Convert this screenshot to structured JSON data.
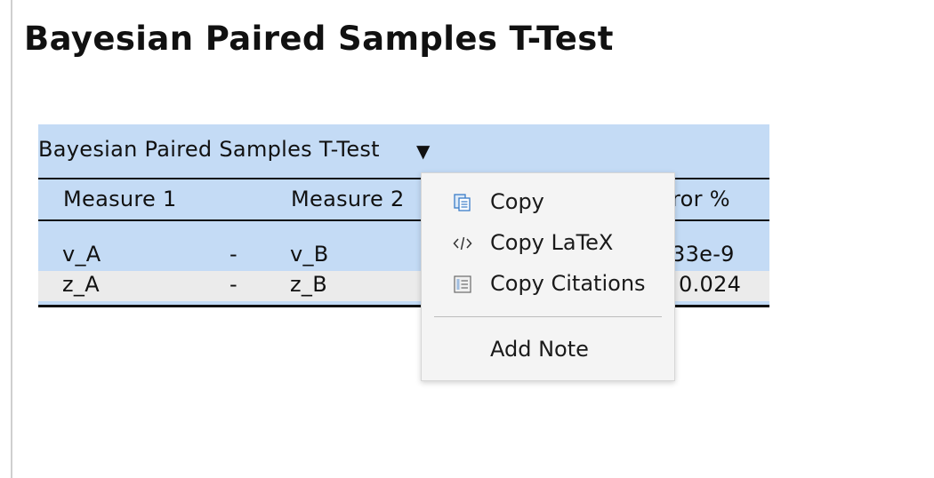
{
  "page": {
    "title": "Bayesian Paired Samples T-Test"
  },
  "table": {
    "title": "Bayesian Paired Samples T-Test",
    "columns": [
      "Measure 1",
      "Measure 2",
      "error %"
    ],
    "visible_header_fragment": "ror %",
    "rows": [
      {
        "measure1": "v_A",
        "sep": "-",
        "measure2": "v_B",
        "error_fragment": "33e-9"
      },
      {
        "measure1": "z_A",
        "sep": "-",
        "measure2": "z_B",
        "error_fragment": "0.024"
      }
    ]
  },
  "context_menu": {
    "items": [
      {
        "label": "Copy",
        "icon": "copy-icon"
      },
      {
        "label": "Copy LaTeX",
        "icon": "code-icon"
      },
      {
        "label": "Copy Citations",
        "icon": "citations-icon"
      },
      {
        "label": "Add Note",
        "icon": ""
      }
    ]
  },
  "colors": {
    "table_highlight": "#c4dbf5",
    "row_alt": "#ebebeb",
    "menu_bg": "#f4f4f4",
    "icon_blue": "#3a7cc8"
  }
}
